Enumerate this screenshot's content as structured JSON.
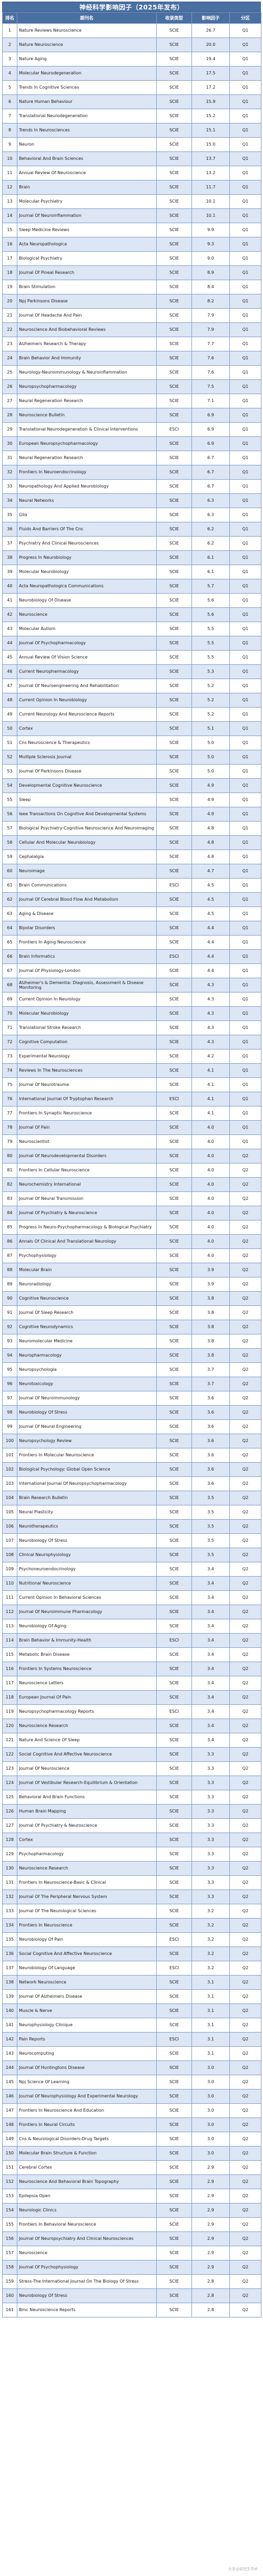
{
  "title": "神经科学影响因子（2025年发布）",
  "columns": {
    "rank": "排名",
    "name": "期刊名",
    "db": "收录类型",
    "if": "影响因子",
    "q": "分区"
  },
  "rows": [
    [
      "1",
      "Nature Reviews Neuroscience",
      "SCIE",
      "26.7",
      "Q1"
    ],
    [
      "2",
      "Nature Neuroscience",
      "SCIE",
      "20.0",
      "Q1"
    ],
    [
      "3",
      "Nature Aging",
      "SCIE",
      "19.4",
      "Q1"
    ],
    [
      "4",
      "Molecular Neurodegeneration",
      "SCIE",
      "17.5",
      "Q1"
    ],
    [
      "5",
      "Trends In Cognitive Sciences",
      "SCIE",
      "17.2",
      "Q1"
    ],
    [
      "6",
      "Nature Human Behaviour",
      "SCIE",
      "15.9",
      "Q1"
    ],
    [
      "7",
      "Translational Neurodegeneration",
      "SCIE",
      "15.2",
      "Q1"
    ],
    [
      "8",
      "Trends In Neurosciences",
      "SCIE",
      "15.1",
      "Q1"
    ],
    [
      "9",
      "Neuron",
      "SCIE",
      "15.0",
      "Q1"
    ],
    [
      "10",
      "Behavioral And Brain Sciences",
      "SCIE",
      "13.7",
      "Q1"
    ],
    [
      "11",
      "Annual Review Of Neuroscience",
      "SCIE",
      "13.2",
      "Q1"
    ],
    [
      "12",
      "Brain",
      "SCIE",
      "11.7",
      "Q1"
    ],
    [
      "13",
      "Molecular Psychiatry",
      "SCIE",
      "10.1",
      "Q1"
    ],
    [
      "14",
      "Journal Of Neuroinflammation",
      "SCIE",
      "10.1",
      "Q1"
    ],
    [
      "15",
      "Sleep Medicine Reviews",
      "SCIE",
      "9.9",
      "Q1"
    ],
    [
      "16",
      "Acta Neuropathologica",
      "SCIE",
      "9.3",
      "Q1"
    ],
    [
      "17",
      "Biological Psychiatry",
      "SCIE",
      "9.0",
      "Q1"
    ],
    [
      "18",
      "Journal Of Pineal Research",
      "SCIE",
      "8.9",
      "Q1"
    ],
    [
      "19",
      "Brain Stimulation",
      "SCIE",
      "8.4",
      "Q1"
    ],
    [
      "20",
      "Npj Parkinsons Disease",
      "SCIE",
      "8.2",
      "Q1"
    ],
    [
      "21",
      "Journal Of Headache And Pain",
      "SCIE",
      "7.9",
      "Q1"
    ],
    [
      "22",
      "Neuroscience And Biobehavioral Reviews",
      "SCIE",
      "7.9",
      "Q1"
    ],
    [
      "23",
      "Alzheimers Research & Therapy",
      "SCIE",
      "7.7",
      "Q1"
    ],
    [
      "24",
      "Brain Behavior And Immunity",
      "SCIE",
      "7.6",
      "Q1"
    ],
    [
      "25",
      "Neurology-Neuroimmunology & Neuroinflammation",
      "SCIE",
      "7.6",
      "Q1"
    ],
    [
      "26",
      "Neuropsychopharmacology",
      "SCIE",
      "7.5",
      "Q1"
    ],
    [
      "27",
      "Neural Regeneration Research",
      "SCIE",
      "7.1",
      "Q1"
    ],
    [
      "28",
      "Neuroscience Bulletin",
      "SCIE",
      "6.9",
      "Q1"
    ],
    [
      "29",
      "Translational Neurodegeneration & Clinical Interventions",
      "ESCI",
      "6.9",
      "Q1"
    ],
    [
      "30",
      "European Neuropsychopharmacology",
      "SCIE",
      "6.9",
      "Q1"
    ],
    [
      "31",
      "Neural Regeneration Research",
      "SCIE",
      "6.7",
      "Q1"
    ],
    [
      "32",
      "Frontiers In Neuroendocrinology",
      "SCIE",
      "6.7",
      "Q1"
    ],
    [
      "33",
      "Neuropathology And Applied Neurobiology",
      "SCIE",
      "6.7",
      "Q1"
    ],
    [
      "34",
      "Neural Networks",
      "SCIE",
      "6.3",
      "Q1"
    ],
    [
      "35",
      "Glia",
      "SCIE",
      "6.3",
      "Q1"
    ],
    [
      "36",
      "Fluids And Barriers Of The Cns",
      "SCIE",
      "6.2",
      "Q1"
    ],
    [
      "37",
      "Psychiatry And Clinical Neurosciences",
      "SCIE",
      "6.2",
      "Q1"
    ],
    [
      "38",
      "Progress In Neurobiology",
      "SCIE",
      "6.1",
      "Q1"
    ],
    [
      "39",
      "Molecular Neurobiology",
      "SCIE",
      "6.1",
      "Q1"
    ],
    [
      "40",
      "Acta Neuropathologica Communications",
      "SCIE",
      "5.7",
      "Q1"
    ],
    [
      "41",
      "Neurobiology Of Disease",
      "SCIE",
      "5.6",
      "Q1"
    ],
    [
      "42",
      "Neuroscience",
      "SCIE",
      "5.6",
      "Q1"
    ],
    [
      "43",
      "Molecular Autism",
      "SCIE",
      "5.5",
      "Q1"
    ],
    [
      "44",
      "Journal Of Psychopharmacology",
      "SCIE",
      "5.5",
      "Q1"
    ],
    [
      "45",
      "Annual Review Of Vision Science",
      "SCIE",
      "5.5",
      "Q1"
    ],
    [
      "46",
      "Current Neuropharmacology",
      "SCIE",
      "5.3",
      "Q1"
    ],
    [
      "47",
      "Journal Of Neuroengineering And Rehabilitation",
      "SCIE",
      "5.2",
      "Q1"
    ],
    [
      "48",
      "Current Opinion In Neurobiology",
      "SCIE",
      "5.2",
      "Q1"
    ],
    [
      "49",
      "Current Neurology And Neuroscience Reports",
      "SCIE",
      "5.2",
      "Q1"
    ],
    [
      "50",
      "Cortex",
      "SCIE",
      "5.1",
      "Q1"
    ],
    [
      "51",
      "Cns Neuroscience & Therapeutics",
      "SCIE",
      "5.0",
      "Q1"
    ],
    [
      "52",
      "Multiple Sclerosis Journal",
      "SCIE",
      "5.0",
      "Q1"
    ],
    [
      "53",
      "Journal Of Parkinsons Disease",
      "SCIE",
      "5.0",
      "Q1"
    ],
    [
      "54",
      "Developmental Cognitive Neuroscience",
      "SCIE",
      "4.9",
      "Q1"
    ],
    [
      "55",
      "Sleep",
      "SCIE",
      "4.9",
      "Q1"
    ],
    [
      "56",
      "Ieee Transactions On Cognitive And Developmental Systems",
      "SCIE",
      "4.9",
      "Q1"
    ],
    [
      "57",
      "Biological Psychiatry-Cognitive Neuroscience And Neuroimaging",
      "SCIE",
      "4.8",
      "Q1"
    ],
    [
      "58",
      "Cellular And Molecular Neurobiology",
      "SCIE",
      "4.8",
      "Q1"
    ],
    [
      "59",
      "Cephalalgia",
      "SCIE",
      "4.8",
      "Q1"
    ],
    [
      "60",
      "Neuroimage",
      "SCIE",
      "4.7",
      "Q1"
    ],
    [
      "61",
      "Brain Communications",
      "ESCI",
      "4.5",
      "Q1"
    ],
    [
      "62",
      "Journal Of Cerebral Blood Flow And Metabolism",
      "SCIE",
      "4.5",
      "Q1"
    ],
    [
      "63",
      "Aging & Disease",
      "SCIE",
      "4.5",
      "Q1"
    ],
    [
      "64",
      "Bipolar Disorders",
      "SCIE",
      "4.4",
      "Q1"
    ],
    [
      "65",
      "Frontiers In Aging Neuroscience",
      "SCIE",
      "4.4",
      "Q1"
    ],
    [
      "66",
      "Brain Informatics",
      "ESCI",
      "4.4",
      "Q1"
    ],
    [
      "67",
      "Journal Of Physiology-London",
      "SCIE",
      "4.4",
      "Q1"
    ],
    [
      "68",
      "Alzheimer's & Dementia: Diagnosis, Assessment & Disease Monitoring",
      "SCIE",
      "4.3",
      "Q1"
    ],
    [
      "69",
      "Current Opinion In Neurology",
      "SCIE",
      "4.3",
      "Q1"
    ],
    [
      "70",
      "Molecular Neurobiology",
      "SCIE",
      "4.3",
      "Q1"
    ],
    [
      "71",
      "Translational Stroke Research",
      "SCIE",
      "4.3",
      "Q1"
    ],
    [
      "72",
      "Cognitive Computation",
      "SCIE",
      "4.3",
      "Q1"
    ],
    [
      "73",
      "Experimental Neurology",
      "SCIE",
      "4.2",
      "Q1"
    ],
    [
      "74",
      "Reviews In The Neurosciences",
      "SCIE",
      "4.1",
      "Q1"
    ],
    [
      "75",
      "Journal Of Neurotrauma",
      "SCIE",
      "4.1",
      "Q1"
    ],
    [
      "76",
      "International Journal Of Tryptophan Research",
      "ESCI",
      "4.1",
      "Q1"
    ],
    [
      "77",
      "Frontiers In Synaptic Neuroscience",
      "SCIE",
      "4.1",
      "Q1"
    ],
    [
      "78",
      "Journal Of Pain",
      "SCIE",
      "4.0",
      "Q1"
    ],
    [
      "79",
      "Neuroscientist",
      "SCIE",
      "4.0",
      "Q1"
    ],
    [
      "80",
      "Journal Of Neurodevelopmental Disorders",
      "SCIE",
      "4.0",
      "Q2"
    ],
    [
      "81",
      "Frontiers In Cellular Neuroscience",
      "SCIE",
      "4.0",
      "Q2"
    ],
    [
      "82",
      "Neurochemistry International",
      "SCIE",
      "4.0",
      "Q2"
    ],
    [
      "83",
      "Journal Of Neural Transmission",
      "SCIE",
      "4.0",
      "Q2"
    ],
    [
      "84",
      "Journal Of Psychiatry & Neuroscience",
      "SCIE",
      "4.0",
      "Q2"
    ],
    [
      "85",
      "Progress In Neuro-Psychopharmacology & Biological Psychiatry",
      "SCIE",
      "4.0",
      "Q2"
    ],
    [
      "86",
      "Annals Of Clinical And Translational Neurology",
      "SCIE",
      "4.0",
      "Q2"
    ],
    [
      "87",
      "Psychophysiology",
      "SCIE",
      "4.0",
      "Q2"
    ],
    [
      "88",
      "Molecular Brain",
      "SCIE",
      "3.9",
      "Q2"
    ],
    [
      "89",
      "Neuroradiology",
      "SCIE",
      "3.9",
      "Q2"
    ],
    [
      "90",
      "Cognitive Neuroscience",
      "SCIE",
      "3.8",
      "Q2"
    ],
    [
      "91",
      "Journal Of Sleep Research",
      "SCIE",
      "3.8",
      "Q2"
    ],
    [
      "92",
      "Cognitive Neurodynamics",
      "SCIE",
      "3.8",
      "Q2"
    ],
    [
      "93",
      "Neuromolecular Medicine",
      "SCIE",
      "3.8",
      "Q2"
    ],
    [
      "94",
      "Neuropharmacology",
      "SCIE",
      "3.8",
      "Q2"
    ],
    [
      "95",
      "Neuropsychologia",
      "SCIE",
      "3.7",
      "Q2"
    ],
    [
      "96",
      "Neurotoxicology",
      "SCIE",
      "3.7",
      "Q2"
    ],
    [
      "97",
      "Journal Of Neuroimmunology",
      "SCIE",
      "3.6",
      "Q2"
    ],
    [
      "98",
      "Neurobiology Of Stress",
      "SCIE",
      "3.6",
      "Q2"
    ],
    [
      "99",
      "Journal Of Neural Engineering",
      "SCIE",
      "3.6",
      "Q2"
    ],
    [
      "100",
      "Neuropsychology Review",
      "SCIE",
      "3.6",
      "Q2"
    ],
    [
      "101",
      "Frontiers In Molecular Neuroscience",
      "SCIE",
      "3.6",
      "Q2"
    ],
    [
      "102",
      "Biological Psychology: Global Open Science",
      "SCIE",
      "3.6",
      "Q2"
    ],
    [
      "103",
      "International Journal Of Neuropsychopharmacology",
      "SCIE",
      "3.6",
      "Q2"
    ],
    [
      "104",
      "Brain Research Bulletin",
      "SCIE",
      "3.5",
      "Q2"
    ],
    [
      "105",
      "Neural Plasticity",
      "SCIE",
      "3.5",
      "Q2"
    ],
    [
      "106",
      "Neurotherapeutics",
      "SCIE",
      "3.5",
      "Q2"
    ],
    [
      "107",
      "Neurobiology Of Stress",
      "SCIE",
      "3.5",
      "Q2"
    ],
    [
      "108",
      "Clinical Neurophysiology",
      "SCIE",
      "3.5",
      "Q2"
    ],
    [
      "109",
      "Psychoneuroendocrinology",
      "SCIE",
      "3.4",
      "Q2"
    ],
    [
      "110",
      "Nutritional Neuroscience",
      "SCIE",
      "3.4",
      "Q2"
    ],
    [
      "111",
      "Current Opinion In Behavioral Sciences",
      "SCIE",
      "3.4",
      "Q2"
    ],
    [
      "112",
      "Journal Of Neuroimmune Pharmacology",
      "SCIE",
      "3.4",
      "Q2"
    ],
    [
      "113",
      "Neurobiology Of Aging",
      "SCIE",
      "3.4",
      "Q2"
    ],
    [
      "114",
      "Brain Behavior & Immunity-Health",
      "ESCI",
      "3.4",
      "Q2"
    ],
    [
      "115",
      "Metabolic Brain Disease",
      "SCIE",
      "3.4",
      "Q2"
    ],
    [
      "116",
      "Frontiers In Systems Neuroscience",
      "SCIE",
      "3.4",
      "Q2"
    ],
    [
      "117",
      "Neuroscience Letters",
      "SCIE",
      "3.4",
      "Q2"
    ],
    [
      "118",
      "European Journal Of Pain",
      "SCIE",
      "3.4",
      "Q2"
    ],
    [
      "119",
      "Neuropsychopharmacology Reports",
      "ESCI",
      "3.4",
      "Q2"
    ],
    [
      "120",
      "Neuroscience Research",
      "SCIE",
      "3.4",
      "Q2"
    ],
    [
      "121",
      "Nature And Science Of Sleep",
      "SCIE",
      "3.4",
      "Q2"
    ],
    [
      "122",
      "Social Cognitive And Affective Neuroscience",
      "SCIE",
      "3.3",
      "Q2"
    ],
    [
      "123",
      "Journal Of Neuroscience",
      "SCIE",
      "3.3",
      "Q2"
    ],
    [
      "124",
      "Journal Of Vestibular Research-Equilibrium & Orientation",
      "SCIE",
      "3.3",
      "Q2"
    ],
    [
      "125",
      "Behavioral And Brain Functions",
      "SCIE",
      "3.3",
      "Q2"
    ],
    [
      "126",
      "Human Brain Mapping",
      "SCIE",
      "3.3",
      "Q2"
    ],
    [
      "127",
      "Journal Of Psychiatry & Neuroscience",
      "SCIE",
      "3.3",
      "Q2"
    ],
    [
      "128",
      "Cortex",
      "SCIE",
      "3.3",
      "Q2"
    ],
    [
      "129",
      "Psychopharmacology",
      "SCIE",
      "3.3",
      "Q2"
    ],
    [
      "130",
      "Neuroscience Research",
      "SCIE",
      "3.3",
      "Q2"
    ],
    [
      "131",
      "Frontiers In Neuroscience-Basic & Clinical",
      "SCIE",
      "3.3",
      "Q2"
    ],
    [
      "132",
      "Journal Of The Peripheral Nervous System",
      "SCIE",
      "3.3",
      "Q2"
    ],
    [
      "133",
      "Journal Of The Neurological Sciences",
      "SCIE",
      "3.2",
      "Q2"
    ],
    [
      "134",
      "Frontiers In Neuroscience",
      "SCIE",
      "3.2",
      "Q2"
    ],
    [
      "135",
      "Neurobiology Of Pain",
      "ESCI",
      "3.2",
      "Q2"
    ],
    [
      "136",
      "Social Cognitive And Affective Neuroscience",
      "SCIE",
      "3.2",
      "Q2"
    ],
    [
      "137",
      "Neurobiology Of Language",
      "ESCI",
      "3.2",
      "Q2"
    ],
    [
      "138",
      "Network Neuroscience",
      "SCIE",
      "3.1",
      "Q2"
    ],
    [
      "139",
      "Journal Of Alzheimers Disease",
      "SCIE",
      "3.1",
      "Q2"
    ],
    [
      "140",
      "Muscle & Nerve",
      "SCIE",
      "3.1",
      "Q2"
    ],
    [
      "141",
      "Neurophysiology Clinique",
      "SCIE",
      "3.1",
      "Q2"
    ],
    [
      "142",
      "Pain Reports",
      "ESCI",
      "3.1",
      "Q2"
    ],
    [
      "143",
      "Neurocomputing",
      "SCIE",
      "3.1",
      "Q2"
    ],
    [
      "144",
      "Journal Of Huntingtons Disease",
      "SCIE",
      "3.0",
      "Q2"
    ],
    [
      "145",
      "Npj Science Of Learning",
      "SCIE",
      "3.0",
      "Q2"
    ],
    [
      "146",
      "Journal Of Neurophysiology And Experimental Neurology",
      "SCIE",
      "3.0",
      "Q2"
    ],
    [
      "147",
      "Frontiers In Neuroscience And Education",
      "SCIE",
      "3.0",
      "Q2"
    ],
    [
      "148",
      "Frontiers In Neural Circuits",
      "SCIE",
      "3.0",
      "Q2"
    ],
    [
      "149",
      "Cns & Neurological Disorders-Drug Targets",
      "SCIE",
      "3.0",
      "Q2"
    ],
    [
      "150",
      "Molecular Brain Structure & Function",
      "SCIE",
      "3.0",
      "Q2"
    ],
    [
      "151",
      "Cerebral Cortex",
      "SCIE",
      "2.9",
      "Q2"
    ],
    [
      "152",
      "Neuroscience And Behavioral Brain Topography",
      "SCIE",
      "2.9",
      "Q2"
    ],
    [
      "153",
      "Epilepsia Open",
      "SCIE",
      "2.9",
      "Q2"
    ],
    [
      "154",
      "Neurologic Clinics",
      "SCIE",
      "2.9",
      "Q2"
    ],
    [
      "155",
      "Frontiers In Behavioral Neuroscience",
      "SCIE",
      "2.9",
      "Q2"
    ],
    [
      "156",
      "Journal Of Neuropsychiatry And Clinical Neurosciences",
      "SCIE",
      "2.9",
      "Q2"
    ],
    [
      "157",
      "Neuroscience",
      "SCIE",
      "2.9",
      "Q2"
    ],
    [
      "158",
      "Journal Of Psychophysiology",
      "SCIE",
      "2.9",
      "Q2"
    ],
    [
      "159",
      "Stress-The International Journal On The Biology Of Stress",
      "SCIE",
      "2.8",
      "Q2"
    ],
    [
      "160",
      "Neurobiology Of Stress",
      "SCIE",
      "2.8",
      "Q2"
    ],
    [
      "161",
      "Bmc Neuroscience Reports",
      "SCIE",
      "2.8",
      "Q2"
    ]
  ],
  "watermark": "头条@研究生学术"
}
